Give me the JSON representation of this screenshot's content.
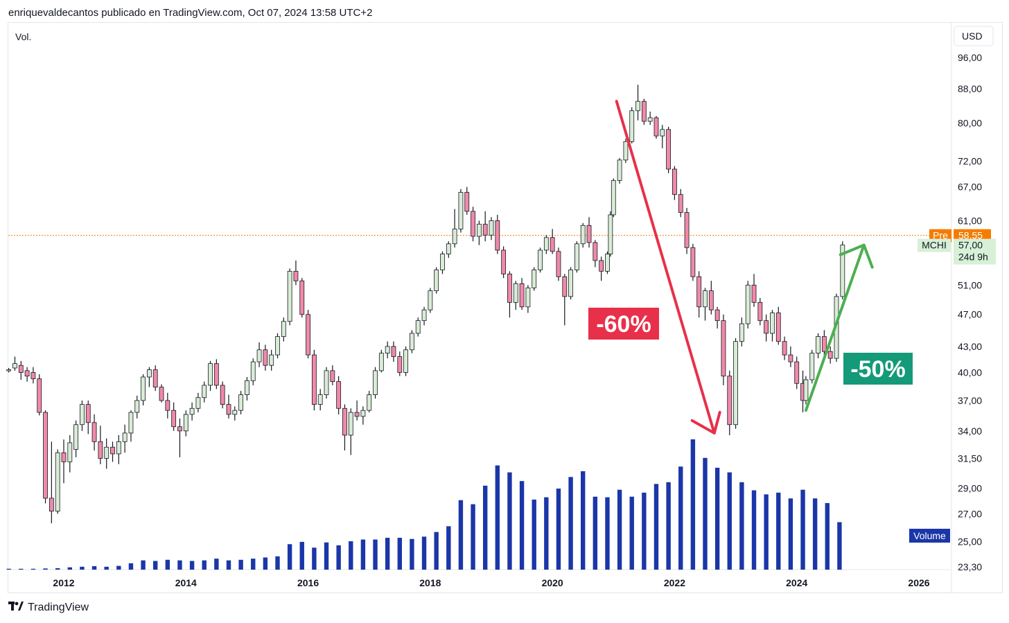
{
  "header": {
    "text": "enriquevaldecantos publicado en TradingView.com, Oct 07, 2024 13:58 UTC+2"
  },
  "footer": {
    "brand": "TradingView",
    "logo_icon": "tradingview-logo-icon"
  },
  "chart_data": {
    "type": "candlestick",
    "symbol": "MCHI",
    "currency": "USD",
    "scale": "log",
    "ylim": [
      23.3,
      100
    ],
    "price_ticks": [
      "96,00",
      "88,00",
      "80,00",
      "72,00",
      "67,00",
      "61,00",
      "51,00",
      "47,00",
      "43,00",
      "40,00",
      "37,00",
      "34,00",
      "31,50",
      "29,00",
      "27,00",
      "25,00",
      "23,30"
    ],
    "x_ticks": [
      "2012",
      "2014",
      "2016",
      "2018",
      "2020",
      "2022",
      "2024",
      "2026"
    ],
    "volume_label": "Vol.",
    "volume_badge": "Volume",
    "pre_label": {
      "tag": "Pre",
      "value": "58,55",
      "price": 58.55,
      "color": "#f57c00"
    },
    "last_label": {
      "tag": "MCHI",
      "value": "57,00",
      "countdown": "24d 9h",
      "price": 57.0,
      "color": "#d7f0d6"
    },
    "annotations": [
      {
        "text": "-60%",
        "color": "#e8304a",
        "from": {
          "date": 2021.05,
          "price": 85
        },
        "to": {
          "date": 2022.65,
          "price": 33.8
        }
      },
      {
        "text": "-50%",
        "color": "#149a78",
        "from": {
          "date": 2024.15,
          "price": 36
        },
        "to": {
          "date": 2025.1,
          "price": 57
        }
      }
    ],
    "colors": {
      "up": "#d9ecd5",
      "down": "#f08aa8",
      "wick": "#131722",
      "volume": "#1b36a8",
      "pre_line": "#f57c00"
    },
    "candles": [
      [
        "2011.1",
        40.2,
        40.5,
        40.0,
        40.3
      ],
      [
        "2011.2",
        40.5,
        41.8,
        40.2,
        41.0
      ],
      [
        "2011.3",
        40.8,
        41.3,
        39.2,
        40.0
      ],
      [
        "2011.4",
        40.2,
        40.6,
        39.0,
        39.6
      ],
      [
        "2011.5",
        40.0,
        40.6,
        38.8,
        39.3
      ],
      [
        "2011.6",
        39.3,
        39.8,
        35.5,
        35.8
      ],
      [
        "2011.7",
        35.8,
        36.0,
        27.8,
        28.2
      ],
      [
        "2011.8",
        28.2,
        33.0,
        26.3,
        27.2
      ],
      [
        "2011.9",
        27.2,
        32.3,
        27.0,
        32.0
      ],
      [
        "2012.0",
        32.0,
        33.2,
        29.4,
        31.2
      ],
      [
        "2012.1",
        31.2,
        33.6,
        30.3,
        32.9
      ],
      [
        "2012.2",
        32.3,
        35.0,
        31.6,
        34.6
      ],
      [
        "2012.3",
        34.6,
        37.0,
        34.0,
        36.6
      ],
      [
        "2012.4",
        36.6,
        37.0,
        33.7,
        34.8
      ],
      [
        "2012.5",
        34.8,
        35.6,
        32.2,
        33.0
      ],
      [
        "2012.6",
        33.0,
        34.5,
        31.0,
        31.5
      ],
      [
        "2012.7",
        31.5,
        33.3,
        30.6,
        32.5
      ],
      [
        "2012.8",
        32.5,
        33.0,
        31.2,
        31.9
      ],
      [
        "2012.9",
        31.9,
        33.6,
        31.0,
        33.0
      ],
      [
        "2013.0",
        33.0,
        34.6,
        32.0,
        33.8
      ],
      [
        "2013.1",
        33.8,
        36.0,
        33.0,
        35.8
      ],
      [
        "2013.2",
        35.8,
        37.5,
        35.2,
        37.0
      ],
      [
        "2013.3",
        37.0,
        39.8,
        36.5,
        39.5
      ],
      [
        "2013.4",
        39.5,
        40.6,
        38.4,
        40.3
      ],
      [
        "2013.5",
        40.3,
        40.8,
        38.0,
        38.4
      ],
      [
        "2013.6",
        38.4,
        38.7,
        36.8,
        37.0
      ],
      [
        "2013.7",
        37.0,
        37.8,
        35.2,
        36.0
      ],
      [
        "2013.8",
        36.0,
        36.8,
        34.0,
        34.4
      ],
      [
        "2013.9",
        34.4,
        35.2,
        31.6,
        34.0
      ],
      [
        "2014.0",
        34.0,
        36.0,
        33.5,
        35.6
      ],
      [
        "2014.1",
        35.6,
        36.8,
        35.0,
        36.2
      ],
      [
        "2014.2",
        36.2,
        37.8,
        35.8,
        37.3
      ],
      [
        "2014.3",
        37.3,
        39.0,
        36.8,
        38.6
      ],
      [
        "2014.4",
        38.6,
        41.3,
        38.0,
        41.0
      ],
      [
        "2014.5",
        41.0,
        41.5,
        38.2,
        38.6
      ],
      [
        "2014.6",
        38.6,
        39.0,
        36.2,
        36.6
      ],
      [
        "2014.7",
        36.6,
        37.6,
        35.2,
        35.6
      ],
      [
        "2014.8",
        35.6,
        36.4,
        35.0,
        36.0
      ],
      [
        "2014.9",
        36.0,
        38.0,
        35.6,
        37.6
      ],
      [
        "2015.0",
        37.6,
        39.5,
        37.0,
        39.1
      ],
      [
        "2015.1",
        39.1,
        41.6,
        38.6,
        41.2
      ],
      [
        "2015.2",
        41.2,
        43.5,
        40.6,
        42.6
      ],
      [
        "2015.3",
        42.6,
        43.2,
        40.2,
        40.8
      ],
      [
        "2015.4",
        40.8,
        42.6,
        40.2,
        42.0
      ],
      [
        "2015.5",
        42.0,
        44.6,
        41.6,
        44.2
      ],
      [
        "2015.6",
        44.2,
        46.6,
        43.6,
        46.1
      ],
      [
        "2015.7",
        46.1,
        53.4,
        45.6,
        53.0
      ],
      [
        "2015.8",
        53.0,
        54.6,
        51.0,
        51.6
      ],
      [
        "2015.9",
        51.6,
        52.0,
        46.6,
        47.0
      ],
      [
        "2016.0",
        47.0,
        47.6,
        41.6,
        42.0
      ],
      [
        "2016.1",
        42.0,
        42.6,
        36.0,
        36.6
      ],
      [
        "2016.2",
        36.6,
        38.2,
        36.0,
        37.6
      ],
      [
        "2016.3",
        37.6,
        40.6,
        37.2,
        40.2
      ],
      [
        "2016.4",
        40.2,
        40.8,
        38.6,
        39.0
      ],
      [
        "2016.5",
        39.0,
        39.6,
        35.6,
        36.2
      ],
      [
        "2016.6",
        36.2,
        36.6,
        32.2,
        33.6
      ],
      [
        "2016.7",
        33.6,
        36.2,
        31.8,
        35.8
      ],
      [
        "2016.8",
        35.8,
        37.0,
        35.0,
        35.4
      ],
      [
        "2016.9",
        35.4,
        36.4,
        34.6,
        36.0
      ],
      [
        "2017.0",
        36.0,
        38.0,
        35.8,
        37.6
      ],
      [
        "2017.1",
        37.6,
        40.6,
        37.2,
        40.2
      ],
      [
        "2017.2",
        40.2,
        42.6,
        40.0,
        42.2
      ],
      [
        "2017.3",
        42.2,
        43.6,
        41.6,
        43.0
      ],
      [
        "2017.4",
        43.0,
        43.6,
        41.2,
        41.8
      ],
      [
        "2017.5",
        41.8,
        42.4,
        39.6,
        40.0
      ],
      [
        "2017.6",
        40.0,
        43.0,
        39.6,
        42.6
      ],
      [
        "2017.7",
        42.6,
        45.0,
        42.2,
        44.6
      ],
      [
        "2017.8",
        44.6,
        46.6,
        44.2,
        46.2
      ],
      [
        "2017.9",
        46.2,
        48.0,
        45.6,
        47.6
      ],
      [
        "2018.0",
        47.6,
        50.6,
        47.2,
        50.2
      ],
      [
        "2018.1",
        50.2,
        53.6,
        49.8,
        53.2
      ],
      [
        "2018.2",
        53.2,
        56.0,
        52.6,
        55.6
      ],
      [
        "2018.3",
        55.6,
        57.6,
        55.0,
        57.2
      ],
      [
        "2018.4",
        57.2,
        63.0,
        56.6,
        59.6
      ],
      [
        "2018.5",
        59.6,
        66.6,
        59.0,
        66.0
      ],
      [
        "2018.6",
        66.0,
        67.0,
        62.0,
        62.6
      ],
      [
        "2018.7",
        62.6,
        63.4,
        57.6,
        58.4
      ],
      [
        "2018.8",
        58.4,
        61.0,
        57.0,
        60.4
      ],
      [
        "2018.9",
        60.4,
        62.6,
        57.6,
        58.6
      ],
      [
        "2019.0",
        58.6,
        61.6,
        57.8,
        61.0
      ],
      [
        "2019.1",
        61.0,
        62.0,
        55.6,
        56.2
      ],
      [
        "2019.2",
        56.2,
        56.8,
        52.0,
        52.6
      ],
      [
        "2019.3",
        52.6,
        53.0,
        46.6,
        48.6
      ],
      [
        "2019.4",
        48.6,
        51.6,
        47.6,
        51.2
      ],
      [
        "2019.5",
        51.2,
        52.0,
        47.6,
        48.0
      ],
      [
        "2019.6",
        48.0,
        51.0,
        47.2,
        50.6
      ],
      [
        "2019.7",
        50.6,
        53.6,
        50.2,
        53.2
      ],
      [
        "2019.8",
        53.2,
        56.6,
        52.8,
        56.2
      ],
      [
        "2019.9",
        56.2,
        58.6,
        55.6,
        58.2
      ],
      [
        "2020.0",
        58.2,
        59.6,
        55.6,
        56.0
      ],
      [
        "2020.1",
        56.0,
        56.6,
        51.6,
        52.2
      ],
      [
        "2020.2",
        52.2,
        52.6,
        45.6,
        49.4
      ],
      [
        "2020.3",
        49.4,
        53.6,
        49.0,
        53.2
      ],
      [
        "2020.4",
        53.2,
        57.6,
        52.8,
        57.2
      ],
      [
        "2020.5",
        57.2,
        60.6,
        56.6,
        60.2
      ],
      [
        "2020.6",
        60.2,
        61.6,
        56.6,
        57.4
      ],
      [
        "2020.7",
        57.4,
        57.8,
        53.6,
        54.6
      ],
      [
        "2020.8",
        54.6,
        55.2,
        51.6,
        53.0
      ],
      [
        "2020.9",
        53.0,
        56.0,
        52.6,
        55.6
      ],
      [
        "2020.95",
        55.6,
        62.6,
        55.2,
        62.0
      ],
      [
        "2021.0",
        62.0,
        68.6,
        61.6,
        68.2
      ],
      [
        "2021.1",
        68.2,
        72.6,
        67.6,
        72.2
      ],
      [
        "2021.2",
        72.2,
        76.6,
        71.6,
        76.0
      ],
      [
        "2021.3",
        76.0,
        83.6,
        75.6,
        82.8
      ],
      [
        "2021.4",
        82.8,
        89.0,
        80.6,
        85.0
      ],
      [
        "2021.5",
        85.0,
        85.6,
        79.6,
        80.4
      ],
      [
        "2021.6",
        80.4,
        82.6,
        79.6,
        81.2
      ],
      [
        "2021.7",
        81.2,
        81.6,
        76.6,
        77.2
      ],
      [
        "2021.8",
        77.2,
        79.6,
        74.6,
        78.6
      ],
      [
        "2021.9",
        78.6,
        79.2,
        69.6,
        70.4
      ],
      [
        "2022.0",
        70.4,
        71.0,
        64.6,
        65.6
      ],
      [
        "2022.1",
        65.6,
        66.6,
        61.6,
        62.4
      ],
      [
        "2022.2",
        62.4,
        63.2,
        55.6,
        56.6
      ],
      [
        "2022.3",
        56.6,
        57.2,
        51.6,
        52.2
      ],
      [
        "2022.4",
        52.2,
        53.0,
        46.6,
        48.0
      ],
      [
        "2022.5",
        48.0,
        50.6,
        46.2,
        50.2
      ],
      [
        "2022.6",
        50.2,
        51.6,
        47.0,
        47.6
      ],
      [
        "2022.7",
        47.6,
        48.0,
        45.2,
        46.2
      ],
      [
        "2022.8",
        46.2,
        47.0,
        38.6,
        39.6
      ],
      [
        "2022.9",
        39.6,
        40.2,
        33.6,
        34.6
      ],
      [
        "2023.0",
        34.6,
        44.0,
        34.2,
        43.6
      ],
      [
        "2023.1",
        43.6,
        46.6,
        43.0,
        45.8
      ],
      [
        "2023.2",
        45.8,
        51.6,
        45.2,
        51.0
      ],
      [
        "2023.3",
        51.0,
        52.6,
        48.0,
        48.6
      ],
      [
        "2023.4",
        48.6,
        49.2,
        45.6,
        46.2
      ],
      [
        "2023.5",
        46.2,
        47.0,
        43.6,
        44.6
      ],
      [
        "2023.6",
        44.6,
        47.6,
        43.6,
        47.2
      ],
      [
        "2023.7",
        47.2,
        48.0,
        43.2,
        43.6
      ],
      [
        "2023.8",
        43.6,
        44.2,
        41.4,
        42.0
      ],
      [
        "2023.9",
        42.0,
        43.0,
        40.6,
        41.2
      ],
      [
        "2024.0",
        41.2,
        41.8,
        38.2,
        38.8
      ],
      [
        "2024.1",
        38.8,
        40.2,
        35.8,
        37.0
      ],
      [
        "2024.15",
        37.0,
        39.6,
        36.6,
        39.2
      ],
      [
        "2024.25",
        39.2,
        42.6,
        38.8,
        42.2
      ],
      [
        "2024.35",
        42.2,
        44.6,
        41.6,
        44.2
      ],
      [
        "2024.45",
        44.2,
        45.0,
        41.6,
        42.4
      ],
      [
        "2024.55",
        42.4,
        43.0,
        41.0,
        41.6
      ],
      [
        "2024.65",
        41.6,
        49.8,
        41.2,
        49.4
      ],
      [
        "2024.75",
        49.4,
        57.6,
        49.0,
        57.0
      ]
    ],
    "volumes": [
      [
        "2011.1",
        0.3
      ],
      [
        "2011.3",
        0.3
      ],
      [
        "2011.5",
        0.3
      ],
      [
        "2011.7",
        0.4
      ],
      [
        "2011.9",
        0.5
      ],
      [
        "2012.1",
        0.8
      ],
      [
        "2012.3",
        1.0
      ],
      [
        "2012.5",
        1.2
      ],
      [
        "2012.7",
        1.0
      ],
      [
        "2012.9",
        1.3
      ],
      [
        "2013.1",
        2.2
      ],
      [
        "2013.3",
        3.2
      ],
      [
        "2013.5",
        3.0
      ],
      [
        "2013.7",
        3.4
      ],
      [
        "2013.9",
        3.2
      ],
      [
        "2014.1",
        3.0
      ],
      [
        "2014.3",
        3.2
      ],
      [
        "2014.5",
        3.8
      ],
      [
        "2014.7",
        3.2
      ],
      [
        "2014.9",
        3.4
      ],
      [
        "2015.1",
        3.8
      ],
      [
        "2015.3",
        4.2
      ],
      [
        "2015.5",
        4.6
      ],
      [
        "2015.7",
        8.8
      ],
      [
        "2015.9",
        9.6
      ],
      [
        "2016.1",
        7.6
      ],
      [
        "2016.3",
        9.4
      ],
      [
        "2016.5",
        8.4
      ],
      [
        "2016.7",
        9.8
      ],
      [
        "2016.9",
        10.4
      ],
      [
        "2017.1",
        10.4
      ],
      [
        "2017.3",
        11.0
      ],
      [
        "2017.5",
        11.0
      ],
      [
        "2017.7",
        10.6
      ],
      [
        "2017.9",
        11.4
      ],
      [
        "2018.1",
        13.0
      ],
      [
        "2018.3",
        15.0
      ],
      [
        "2018.5",
        24.0
      ],
      [
        "2018.7",
        22.6
      ],
      [
        "2018.9",
        29.0
      ],
      [
        "2019.1",
        36.0
      ],
      [
        "2019.3",
        33.6
      ],
      [
        "2019.5",
        30.6
      ],
      [
        "2019.7",
        24.2
      ],
      [
        "2019.9",
        25.0
      ],
      [
        "2020.1",
        28.0
      ],
      [
        "2020.3",
        32.0
      ],
      [
        "2020.5",
        34.0
      ],
      [
        "2020.7",
        25.2
      ],
      [
        "2020.9",
        25.0
      ],
      [
        "2021.1",
        27.6
      ],
      [
        "2021.3",
        25.2
      ],
      [
        "2021.5",
        26.6
      ],
      [
        "2021.7",
        29.6
      ],
      [
        "2021.9",
        30.2
      ],
      [
        "2022.1",
        35.6
      ],
      [
        "2022.3",
        45.0
      ],
      [
        "2022.5",
        38.6
      ],
      [
        "2022.7",
        35.2
      ],
      [
        "2022.9",
        33.6
      ],
      [
        "2023.1",
        30.2
      ],
      [
        "2023.3",
        27.4
      ],
      [
        "2023.5",
        26.0
      ],
      [
        "2023.7",
        26.6
      ],
      [
        "2023.9",
        24.6
      ],
      [
        "2024.1",
        27.6
      ],
      [
        "2024.3",
        24.6
      ],
      [
        "2024.5",
        23.0
      ],
      [
        "2024.7",
        16.4
      ]
    ]
  }
}
